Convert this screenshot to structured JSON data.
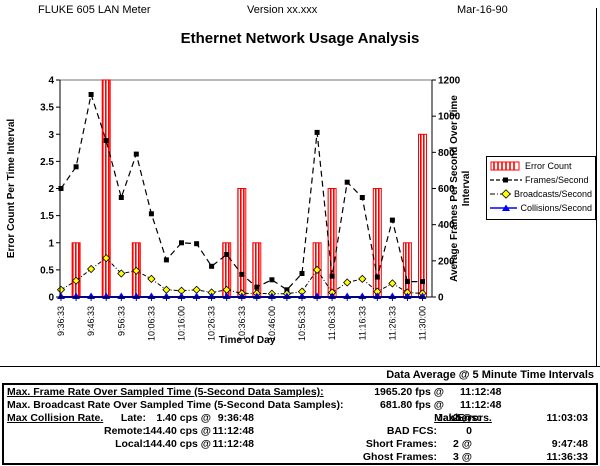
{
  "header": {
    "device": "FLUKE 605 LAN Meter",
    "version": "Version xx.xxx",
    "date": "Mar-16-90"
  },
  "title": "Ethernet Network Usage Analysis",
  "chart_data": {
    "type": "bar",
    "title": "Ethernet Network Usage Analysis",
    "xlabel": "Time of Day",
    "ylabel_left": "Error Count Per Time Interval",
    "ylabel_right_line1": "Average Frames Per Second Over Time",
    "ylabel_right_line2": "Interval",
    "ylim_left": [
      0,
      4
    ],
    "yticks_left": [
      0,
      0.5,
      1,
      1.5,
      2,
      2.5,
      3,
      3.5,
      4
    ],
    "ylim_right": [
      0,
      1200
    ],
    "yticks_right": [
      0,
      200,
      400,
      600,
      800,
      1000,
      1200
    ],
    "n_points": 25,
    "x_tick_labels": [
      "9:36:33",
      "9:46:33",
      "9:56:33",
      "10:06:33",
      "10:16:00",
      "10:26:33",
      "10:36:33",
      "10:46:00",
      "10:56:33",
      "11:06:33",
      "11:16:33",
      "11:26:33",
      "11:30:00"
    ],
    "grid": "top-line-only",
    "legend_position": "right",
    "series": [
      {
        "name": "Error Count",
        "type": "bar",
        "axis": "left",
        "color": "#ff0000",
        "values": [
          0,
          1,
          0,
          4,
          0,
          1,
          0,
          0,
          0,
          0,
          0,
          1,
          2,
          1,
          0,
          0,
          0,
          1,
          2,
          0,
          0,
          2,
          0,
          1,
          3
        ]
      },
      {
        "name": "Frames/Second",
        "type": "line",
        "axis": "right",
        "color": "#000000",
        "marker": "square",
        "values": [
          600,
          720,
          1120,
          865,
          550,
          790,
          460,
          205,
          300,
          295,
          170,
          235,
          125,
          55,
          95,
          40,
          130,
          910,
          115,
          635,
          550,
          110,
          425,
          85,
          85
        ]
      },
      {
        "name": "Broadcasts/Second",
        "type": "line",
        "axis": "right",
        "color": "#000000",
        "marker": "diamond",
        "marker_color": "#ffff00",
        "values": [
          40,
          90,
          155,
          215,
          130,
          145,
          100,
          40,
          35,
          40,
          25,
          40,
          20,
          20,
          18,
          18,
          30,
          150,
          25,
          80,
          100,
          30,
          75,
          25,
          20
        ]
      },
      {
        "name": "Collisions/Second",
        "type": "line",
        "axis": "right",
        "color": "#0000ff",
        "marker": "triangle",
        "marker_color": "#0000ff",
        "values": [
          0,
          0,
          0,
          0,
          0,
          0,
          0,
          0,
          0,
          0,
          0,
          0,
          0,
          0,
          0,
          0,
          0,
          0,
          0,
          0,
          0,
          0,
          0,
          0,
          0
        ]
      }
    ]
  },
  "footer": {
    "avg_note": "Data Average @ 5 Minute Time Intervals",
    "frame_rate_label": "Max. Frame Rate Over Sampled Time (5-Second Data Samples):",
    "frame_rate_value": "1965.20 fps @",
    "frame_rate_time": "11:12:48",
    "broadcast_rate_label": "Max. Broadcast Rate Over Sampled Time (5-Second Data Samples):",
    "broadcast_rate_value": "681.80 fps @",
    "broadcast_rate_time": "11:12:48",
    "collision_header": "Max Collision Rate.",
    "late_label": "Late:",
    "late_value": "1.40 cps @",
    "late_time": "9:36:48",
    "remote_label": "Remote:",
    "remote_value": "144.40 cps @",
    "remote_time": "11:12:48",
    "local_label": "Local:",
    "local_value": "144.40 cps @",
    "local_time": "11:12:48",
    "errors_header": "Max Errors.",
    "jabbers_label": "Jabbers:",
    "jabbers_value": "2 @",
    "jabbers_time": "11:03:03",
    "badfcs_label": "BAD FCS:",
    "badfcs_value": "0",
    "short_label": "Short Frames:",
    "short_value": "2 @",
    "short_time": "9:47:48",
    "ghost_label": "Ghost Frames:",
    "ghost_value": "3 @",
    "ghost_time": "11:36:33"
  }
}
